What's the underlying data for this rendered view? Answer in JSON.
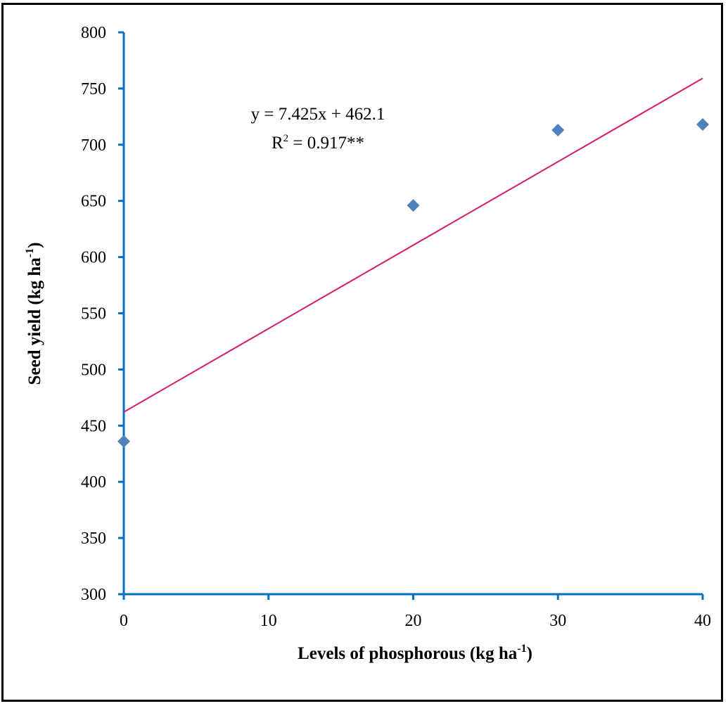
{
  "chart_data": {
    "type": "scatter",
    "xlabel": "Levels of phosphorous (kg ha",
    "xlabel_sup": "-1",
    "xlabel_end": ")",
    "ylabel": "Seed yield (kg ha",
    "ylabel_sup": "-1",
    "ylabel_end": ")",
    "xlim": [
      0,
      40
    ],
    "ylim": [
      300,
      800
    ],
    "x_ticks": [
      0,
      10,
      20,
      30,
      40
    ],
    "y_ticks": [
      300,
      350,
      400,
      450,
      500,
      550,
      600,
      650,
      700,
      750,
      800
    ],
    "series": [
      {
        "points": [
          {
            "x": 0,
            "y": 436
          },
          {
            "x": 20,
            "y": 646
          },
          {
            "x": 30,
            "y": 713
          },
          {
            "x": 40,
            "y": 718
          }
        ],
        "marker": "diamond",
        "color": "#4f81bd"
      }
    ],
    "trendline": {
      "slope": 7.425,
      "intercept": 462.1,
      "x_range": [
        0,
        40
      ],
      "color": "#d6196e"
    },
    "annotations": {
      "equation": "y = 7.425x + 462.1",
      "r2_prefix": "R",
      "r2_sup": "2",
      "r2_value": " = 0.917**"
    },
    "axis_color": "#0070c0",
    "grid": false
  }
}
